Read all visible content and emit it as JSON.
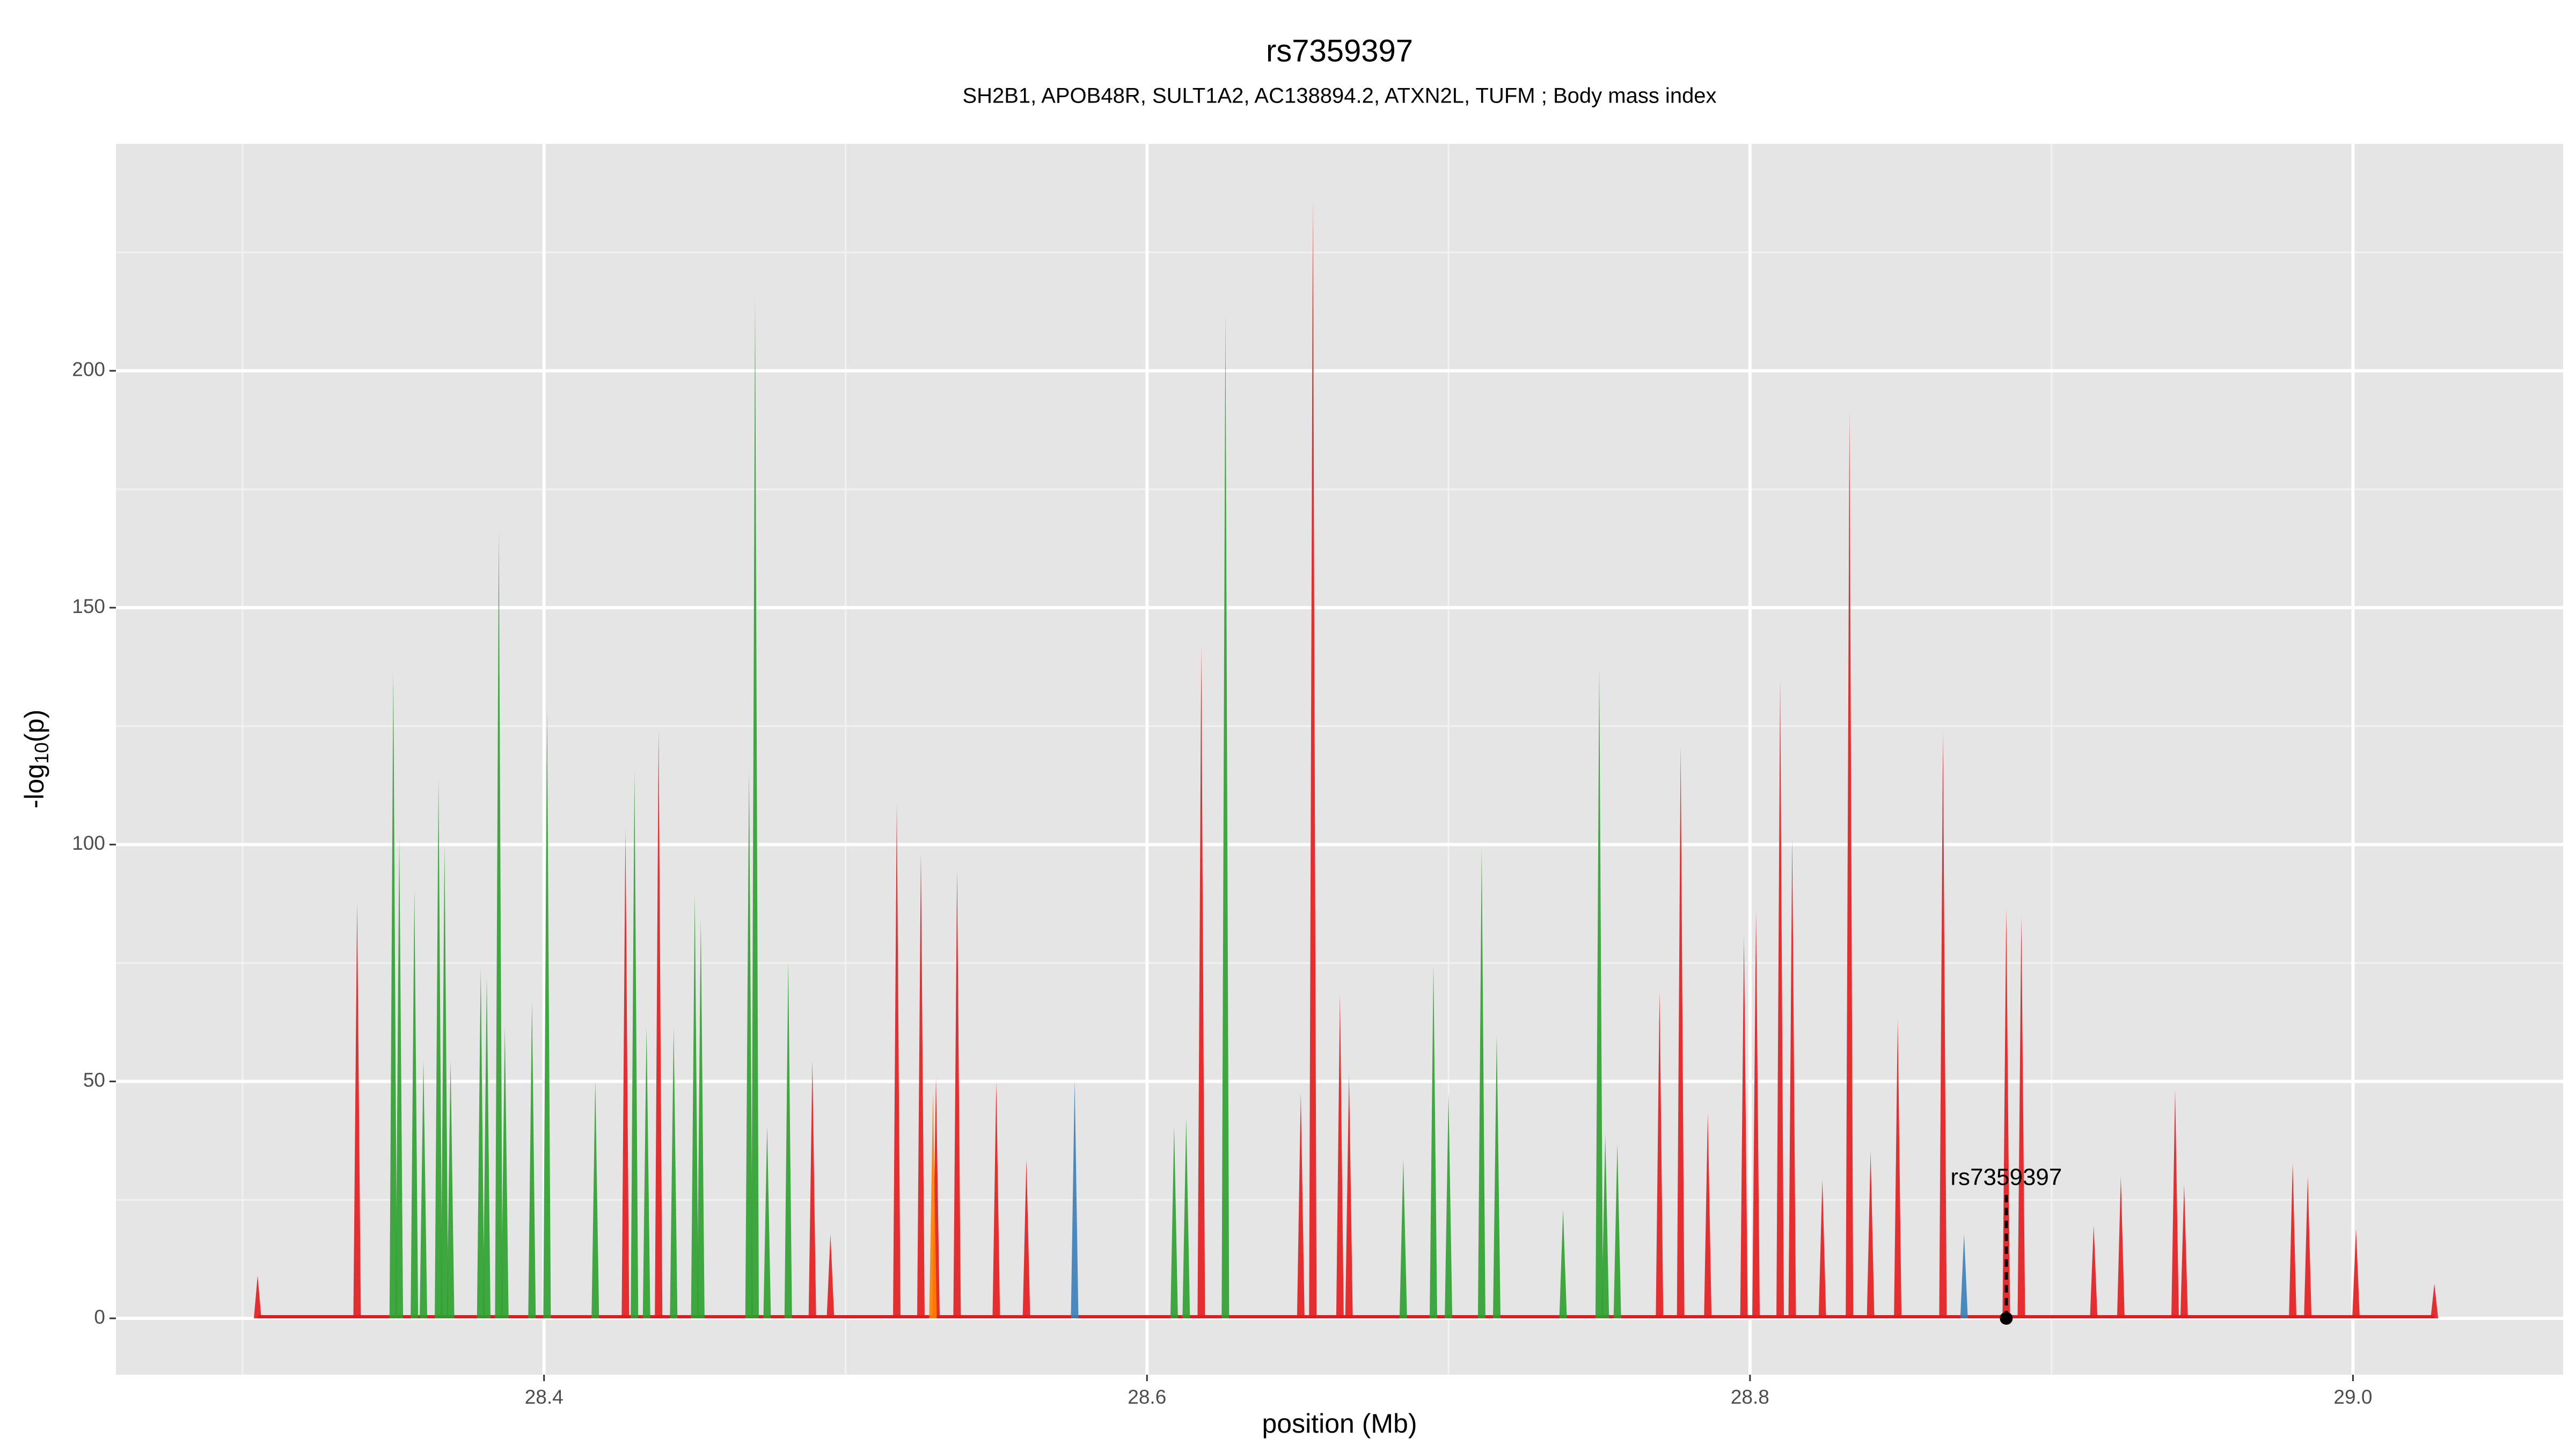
{
  "chart_data": {
    "type": "spike",
    "title": "rs7359397",
    "subtitle": "SH2B1, APOB48R, SULT1A2, AC138894.2, ATXN2L, TUFM ; Body mass index",
    "xlabel": "position (Mb)",
    "ylabel": [
      "-log",
      "10",
      "(p)"
    ],
    "xlim": [
      28.258,
      29.0697
    ],
    "ylim": [
      -11.9,
      247.9
    ],
    "xticks": [
      28.4,
      28.6,
      28.8,
      {
        "value": 29.0,
        "label": "29.0"
      }
    ],
    "yticks": [
      0,
      50,
      100,
      150,
      200
    ],
    "grid": true,
    "series": [
      {
        "color": "#2ca02c",
        "x": [
          28.35,
          28.352,
          28.357,
          28.36,
          28.365,
          28.367,
          28.369,
          28.379,
          28.381,
          28.385,
          28.387,
          28.396,
          28.401,
          28.417,
          28.43,
          28.434,
          28.443,
          28.45,
          28.452,
          28.468,
          28.47,
          28.474,
          28.481,
          28.609,
          28.613,
          28.626,
          28.685,
          28.695,
          28.7,
          28.711,
          28.716,
          28.738,
          28.75,
          28.752,
          28.756
        ],
        "values": [
          136.7,
          101.7,
          90.6,
          54.5,
          114,
          100,
          54.5,
          73.8,
          72,
          166.4,
          61.5,
          66.8,
          128.7,
          50.3,
          115.7,
          61.5,
          61.5,
          89.5,
          84.3,
          115.7,
          215.4,
          40.6,
          75.5,
          40.6,
          42.3,
          212.6,
          33.6,
          74.5,
          47.6,
          99.3,
          59.8,
          23,
          137.4,
          38.8,
          37
        ]
      },
      {
        "color": "#e41a1c",
        "x": [
          28.305,
          28.338,
          28.427,
          28.438,
          28.489,
          28.495,
          28.517,
          28.525,
          28.53,
          28.537,
          28.55,
          28.56,
          28.618,
          28.651,
          28.655,
          28.664,
          28.667,
          28.77,
          28.777,
          28.786,
          28.798,
          28.802,
          28.81,
          28.814,
          28.824,
          28.833,
          28.84,
          28.849,
          28.864,
          28.885,
          28.89,
          28.914,
          28.923,
          28.941,
          28.944,
          28.98,
          28.985,
          29.001,
          29.027
        ],
        "values": [
          9,
          87.8,
          103.5,
          124.5,
          54.5,
          17.8,
          108.7,
          98.3,
          51,
          94.8,
          50,
          33.6,
          142,
          47.6,
          236.4,
          68.5,
          51.7,
          69.2,
          121,
          43.4,
          80.8,
          86,
          135,
          101.7,
          29.4,
          191.6,
          35.3,
          63.3,
          123.8,
          86.7,
          85,
          19.6,
          30,
          48.3,
          28.3,
          32.9,
          30,
          18.9,
          7.3
        ]
      },
      {
        "color": "#ff7f00",
        "x": [
          28.529
        ],
        "values": [
          47.6
        ]
      },
      {
        "color": "#377eb8",
        "x": [
          28.576,
          28.871
        ],
        "values": [
          50.3,
          17.8
        ]
      }
    ],
    "annotation": {
      "text": "rs7359397",
      "x": 28.885,
      "y": 0
    }
  }
}
